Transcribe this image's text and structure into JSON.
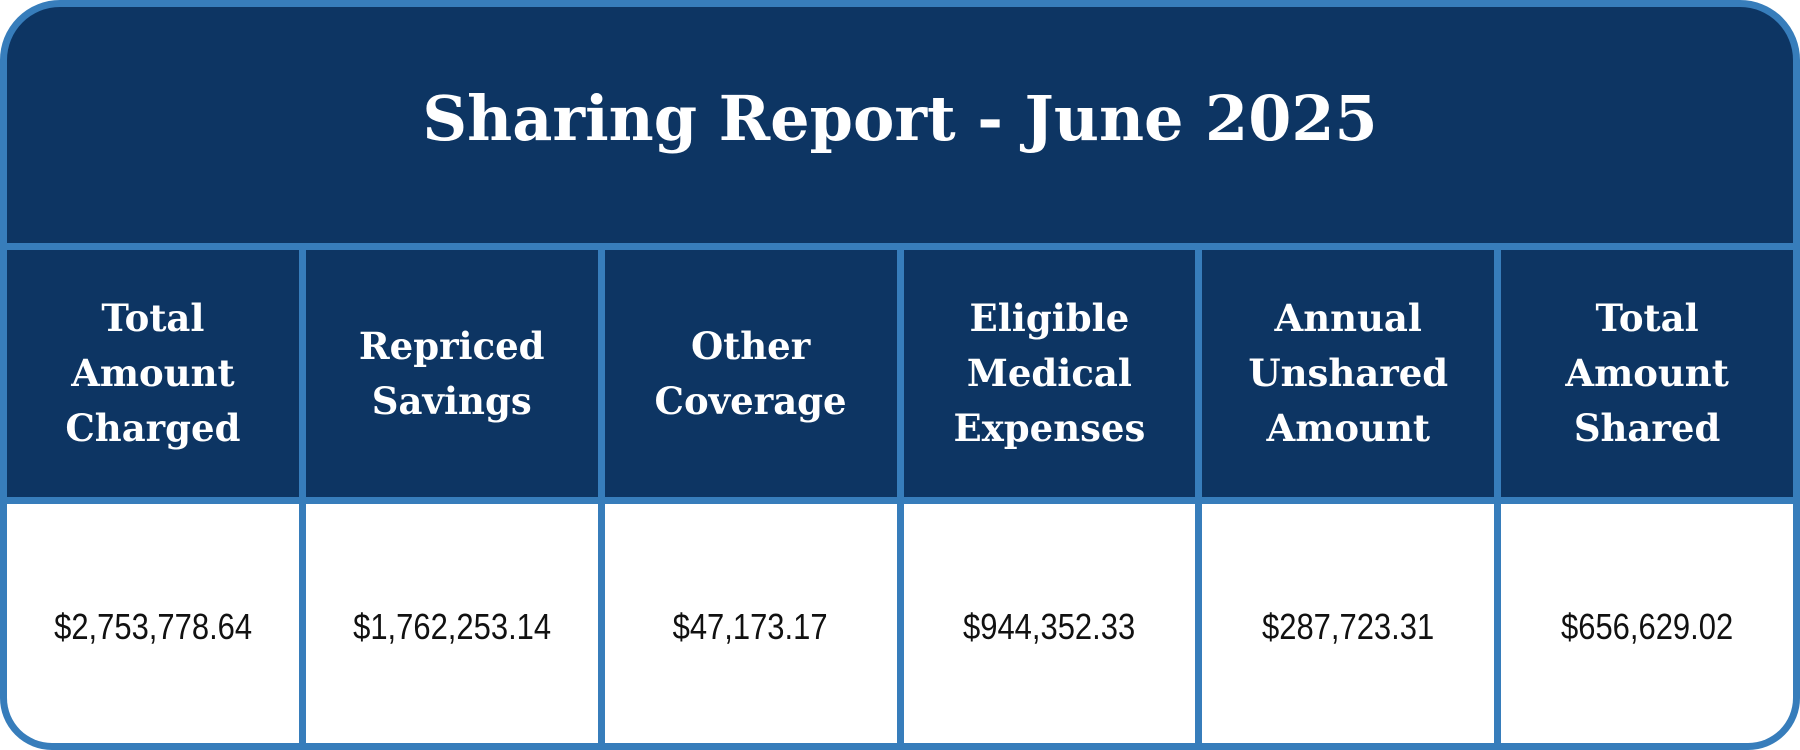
{
  "title": "Sharing Report - June 2025",
  "colors": {
    "header_background": "#0d3563",
    "border": "#377dbb",
    "cell_background": "#ffffff",
    "value_text": "#111111"
  },
  "columns": [
    {
      "label": "Total\nAmount\nCharged",
      "value": "$2,753,778.64"
    },
    {
      "label": "Repriced\nSavings",
      "value": "$1,762,253.14"
    },
    {
      "label": "Other\nCoverage",
      "value": "$47,173.17"
    },
    {
      "label": "Eligible\nMedical\nExpenses",
      "value": "$944,352.33"
    },
    {
      "label": "Annual\nUnshared\nAmount",
      "value": "$287,723.31"
    },
    {
      "label": "Total\nAmount\nShared",
      "value": "$656,629.02"
    }
  ]
}
